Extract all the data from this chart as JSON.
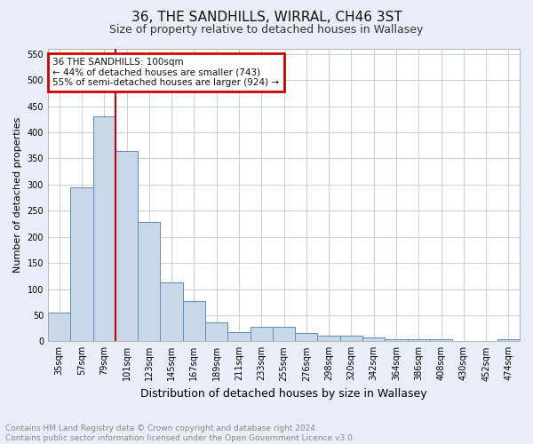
{
  "title1": "36, THE SANDHILLS, WIRRAL, CH46 3ST",
  "title2": "Size of property relative to detached houses in Wallasey",
  "xlabel": "Distribution of detached houses by size in Wallasey",
  "ylabel": "Number of detached properties",
  "footer1": "Contains HM Land Registry data © Crown copyright and database right 2024.",
  "footer2": "Contains public sector information licensed under the Open Government Licence v3.0.",
  "annotation_line1": "36 THE SANDHILLS: 100sqm",
  "annotation_line2": "← 44% of detached houses are smaller (743)",
  "annotation_line3": "55% of semi-detached houses are larger (924) →",
  "bar_labels": [
    "35sqm",
    "57sqm",
    "79sqm",
    "101sqm",
    "123sqm",
    "145sqm",
    "167sqm",
    "189sqm",
    "211sqm",
    "233sqm",
    "255sqm",
    "276sqm",
    "298sqm",
    "320sqm",
    "342sqm",
    "364sqm",
    "386sqm",
    "408sqm",
    "430sqm",
    "452sqm",
    "474sqm"
  ],
  "bar_values": [
    55,
    295,
    430,
    365,
    228,
    113,
    77,
    37,
    17,
    28,
    28,
    16,
    10,
    10,
    7,
    4,
    4,
    4,
    0,
    0,
    4
  ],
  "bar_color": "#c8d8e8",
  "bar_edge_color": "#5b8db8",
  "vline_color": "#cc0000",
  "annotation_box_color": "#cc0000",
  "ylim": [
    0,
    560
  ],
  "yticks": [
    0,
    50,
    100,
    150,
    200,
    250,
    300,
    350,
    400,
    450,
    500,
    550
  ],
  "bg_color": "#e8eef8",
  "plot_bg_color": "#ffffff",
  "grid_color": "#c8d0dc",
  "title1_fontsize": 11,
  "title2_fontsize": 9,
  "ylabel_fontsize": 8,
  "xlabel_fontsize": 9,
  "tick_fontsize": 7,
  "footer_fontsize": 6.5,
  "ann_fontsize": 7.5
}
